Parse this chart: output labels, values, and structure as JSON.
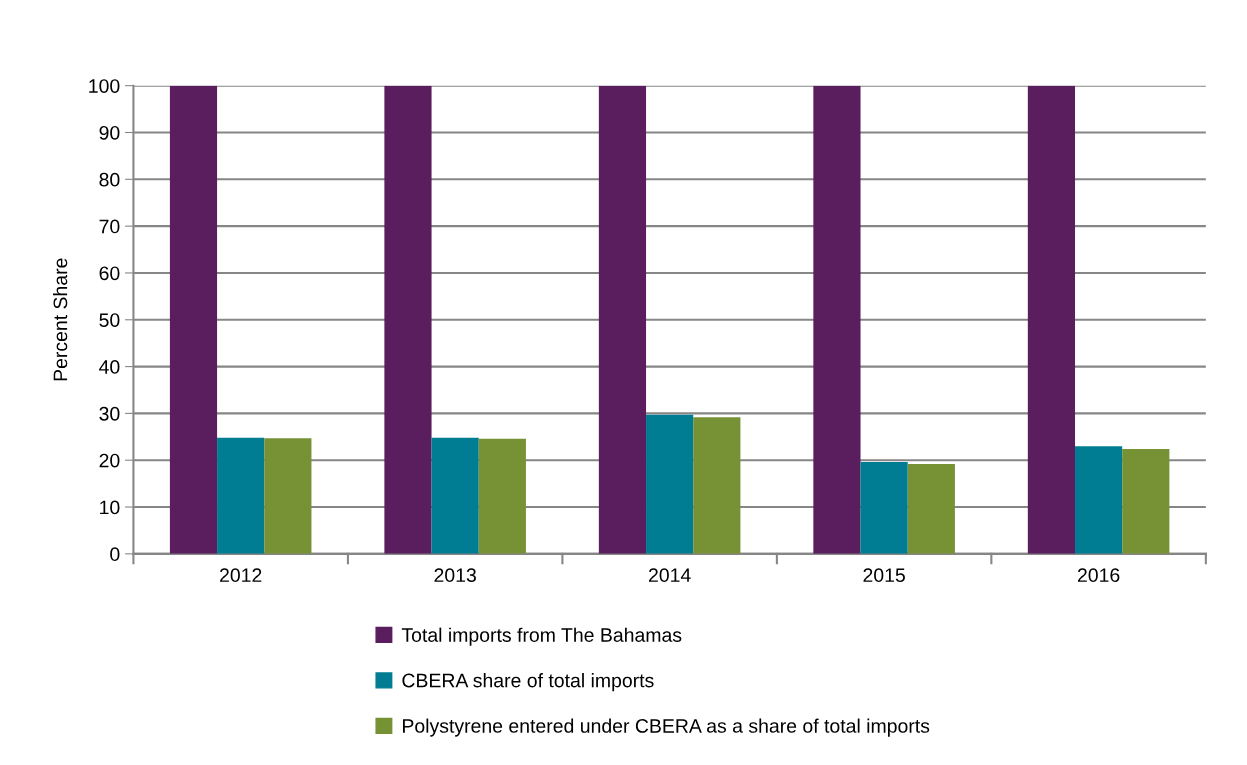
{
  "chart_data": {
    "type": "bar",
    "ylabel": "Percent Share",
    "categories": [
      "2012",
      "2013",
      "2014",
      "2015",
      "2016"
    ],
    "series": [
      {
        "name": "Total imports from The Bahamas",
        "color": "#5a1e5e",
        "values": [
          100,
          100,
          100,
          100,
          100
        ]
      },
      {
        "name": "CBERA share of total imports",
        "color": "#007c93",
        "values": [
          24.8,
          24.8,
          29.7,
          19.6,
          23.0
        ]
      },
      {
        "name": "Polystyrene entered under CBERA as a share of total imports",
        "color": "#779135",
        "values": [
          24.7,
          24.6,
          29.2,
          19.2,
          22.4
        ]
      }
    ],
    "ylim": [
      0,
      100
    ],
    "yticks": [
      0,
      10,
      20,
      30,
      40,
      50,
      60,
      70,
      80,
      90,
      100
    ],
    "grid": "y",
    "legend": "bottom"
  }
}
